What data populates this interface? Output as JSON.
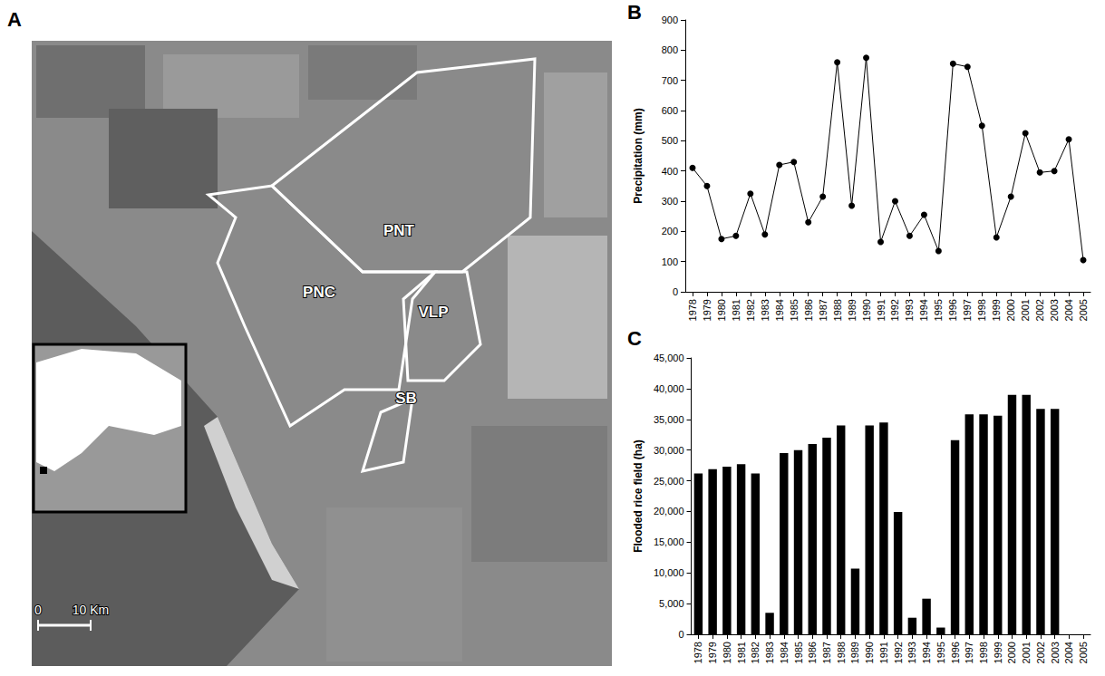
{
  "panel_letters": [
    "A",
    "B",
    "C"
  ],
  "map": {
    "region_labels": [
      "PNT",
      "PNC",
      "VLP",
      "SB"
    ],
    "scale_bar": [
      "0",
      "10 Km"
    ]
  },
  "chart_data": [
    {
      "type": "line",
      "ylabel": "Precipitation (mm)",
      "categories": [
        "1978",
        "1979",
        "1980",
        "1981",
        "1982",
        "1983",
        "1984",
        "1985",
        "1986",
        "1987",
        "1988",
        "1989",
        "1990",
        "1991",
        "1992",
        "1993",
        "1994",
        "1995",
        "1996",
        "1997",
        "1998",
        "1999",
        "2000",
        "2001",
        "2002",
        "2003",
        "2004",
        "2005"
      ],
      "values": [
        410,
        350,
        175,
        185,
        325,
        190,
        420,
        430,
        230,
        315,
        760,
        285,
        775,
        165,
        300,
        185,
        255,
        135,
        755,
        745,
        550,
        180,
        315,
        525,
        395,
        400,
        505,
        105
      ],
      "color": "#000000",
      "marker": "circle",
      "line_style": "solid",
      "ylim": [
        0,
        900
      ],
      "yticks": [
        0,
        100,
        200,
        300,
        400,
        500,
        600,
        700,
        800,
        900
      ],
      "grid": false
    },
    {
      "type": "bar",
      "ylabel": "Flooded rice field (ha)",
      "categories": [
        "1978",
        "1979",
        "1980",
        "1981",
        "1982",
        "1983",
        "1984",
        "1985",
        "1986",
        "1987",
        "1988",
        "1989",
        "1990",
        "1991",
        "1992",
        "1993",
        "1994",
        "1995",
        "1996",
        "1997",
        "1998",
        "1999",
        "2000",
        "2001",
        "2002",
        "2003",
        "2004",
        "2005"
      ],
      "values": [
        26200,
        26900,
        27300,
        27700,
        26200,
        3500,
        29500,
        30000,
        31000,
        32000,
        34000,
        10700,
        34000,
        34500,
        19900,
        2700,
        5800,
        1100,
        31600,
        35800,
        35800,
        35600,
        39000,
        39000,
        36700,
        36700,
        null,
        null
      ],
      "color": "#000000",
      "ylim": [
        0,
        45000
      ],
      "yticks": [
        0,
        5000,
        10000,
        15000,
        20000,
        25000,
        30000,
        35000,
        40000,
        45000
      ],
      "grid": false
    }
  ]
}
